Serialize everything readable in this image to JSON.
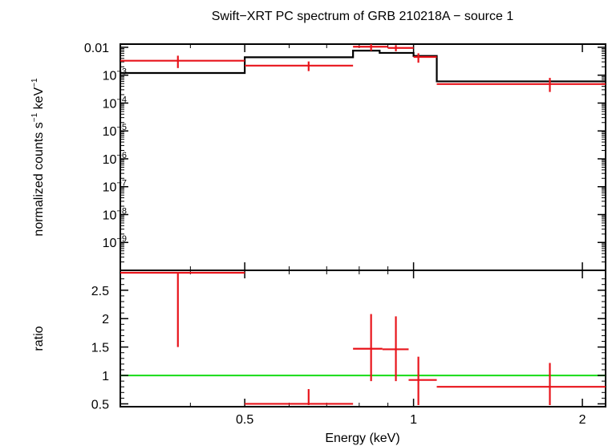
{
  "chart_data": [
    {
      "type": "line",
      "panel": "spectrum",
      "title": "Swift−XRT PC spectrum of GRB 210218A − source 1",
      "xlabel": "Energy (keV)",
      "ylabel_parts": {
        "pre": "normalized counts s",
        "sup1": "−1",
        "mid": " keV",
        "sup2": "−1"
      },
      "xscale": "log",
      "yscale": "log",
      "xlim": [
        0.3,
        2.2
      ],
      "ylim": [
        1e-10,
        0.013
      ],
      "x_ticks": [
        {
          "value": 0.5,
          "label": "0.5"
        },
        {
          "value": 1,
          "label": "1"
        },
        {
          "value": 2,
          "label": "2"
        }
      ],
      "y_ticks": [
        {
          "value": 0.01,
          "base": "0.01",
          "exp": ""
        },
        {
          "value": 0.001,
          "base": "10",
          "exp": "−3"
        },
        {
          "value": 0.0001,
          "base": "10",
          "exp": "−4"
        },
        {
          "value": 1e-05,
          "base": "10",
          "exp": "−5"
        },
        {
          "value": 1e-06,
          "base": "10",
          "exp": "−6"
        },
        {
          "value": 1e-07,
          "base": "10",
          "exp": "−7"
        },
        {
          "value": 1e-08,
          "base": "10",
          "exp": "−8"
        },
        {
          "value": 1e-09,
          "base": "10",
          "exp": "−9"
        }
      ],
      "data": [
        {
          "x": 0.38,
          "xlo": 0.3,
          "xhi": 0.5,
          "y": 0.0033,
          "ylo": 0.0018,
          "yhi": 0.005
        },
        {
          "x": 0.65,
          "xlo": 0.5,
          "xhi": 0.78,
          "y": 0.0022,
          "ylo": 0.0014,
          "yhi": 0.0031
        },
        {
          "x": 0.84,
          "xlo": 0.78,
          "xhi": 0.9,
          "y": 0.0105,
          "ylo": 0.0075,
          "yhi": 0.0135
        },
        {
          "x": 0.93,
          "xlo": 0.9,
          "xhi": 1.0,
          "y": 0.0095,
          "ylo": 0.0072,
          "yhi": 0.012
        },
        {
          "x": 1.02,
          "xlo": 1.0,
          "xhi": 1.1,
          "y": 0.0045,
          "ylo": 0.0028,
          "yhi": 0.0061
        },
        {
          "x": 1.75,
          "xlo": 1.1,
          "xhi": 2.2,
          "y": 0.00048,
          "ylo": 0.00025,
          "yhi": 0.0008
        }
      ],
      "model_steps": [
        {
          "xlo": 0.3,
          "xhi": 0.5,
          "y": 0.0012
        },
        {
          "xlo": 0.5,
          "xhi": 0.78,
          "y": 0.0044
        },
        {
          "xlo": 0.78,
          "xhi": 0.87,
          "y": 0.0076
        },
        {
          "xlo": 0.87,
          "xhi": 1.0,
          "y": 0.0063
        },
        {
          "xlo": 1.0,
          "xhi": 1.1,
          "y": 0.0049
        },
        {
          "xlo": 1.1,
          "xhi": 2.2,
          "y": 0.0006
        }
      ],
      "colors": {
        "data": "#e8141b",
        "model": "#000000"
      }
    },
    {
      "type": "scatter",
      "panel": "ratio",
      "xlabel": "Energy (keV)",
      "ylabel": "ratio",
      "xscale": "log",
      "yscale": "linear",
      "xlim": [
        0.3,
        2.2
      ],
      "ylim": [
        0.45,
        2.85
      ],
      "y_ticks": [
        {
          "value": 0.5,
          "label": "0.5"
        },
        {
          "value": 1,
          "label": "1"
        },
        {
          "value": 1.5,
          "label": "1.5"
        },
        {
          "value": 2,
          "label": "2"
        },
        {
          "value": 2.5,
          "label": "2.5"
        }
      ],
      "reference_line": {
        "y": 1,
        "color": "#22dd22"
      },
      "data": [
        {
          "x": 0.38,
          "xlo": 0.3,
          "xhi": 0.5,
          "y": 2.85,
          "ylo": 1.5,
          "yhi": 2.85
        },
        {
          "x": 0.65,
          "xlo": 0.5,
          "xhi": 0.78,
          "y": 0.5,
          "ylo": 0.45,
          "yhi": 0.76
        },
        {
          "x": 0.84,
          "xlo": 0.78,
          "xhi": 0.88,
          "y": 1.47,
          "ylo": 0.9,
          "yhi": 2.08
        },
        {
          "x": 0.93,
          "xlo": 0.88,
          "xhi": 0.98,
          "y": 1.46,
          "ylo": 0.9,
          "yhi": 2.04
        },
        {
          "x": 1.02,
          "xlo": 0.98,
          "xhi": 1.1,
          "y": 0.92,
          "ylo": 0.47,
          "yhi": 1.33
        },
        {
          "x": 1.75,
          "xlo": 1.1,
          "xhi": 2.2,
          "y": 0.8,
          "ylo": 0.45,
          "yhi": 1.22
        }
      ],
      "colors": {
        "data": "#e8141b"
      }
    }
  ]
}
